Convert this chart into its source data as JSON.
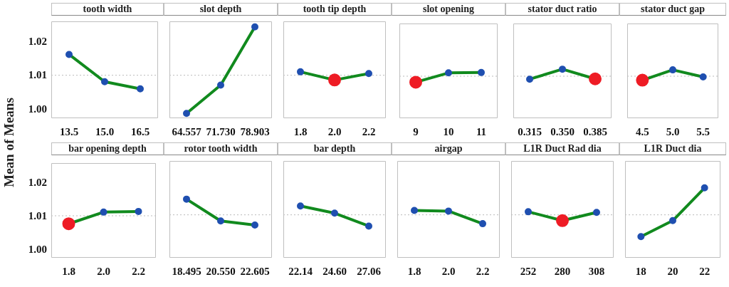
{
  "chart_data": [
    {
      "type": "line",
      "title": "tooth width",
      "ylabel": "Mean of Means",
      "categories": [
        "13.5",
        "15.0",
        "16.5"
      ],
      "series": [
        {
          "color": "#118a1e",
          "colors": [
            "#1f4fb0",
            "#1f4fb0",
            "#1f4fb0"
          ],
          "values": [
            1.0163,
            1.0083,
            1.0062
          ]
        }
      ],
      "ylim": [
        0.9976,
        1.026
      ],
      "yticks": [
        {
          "value": 1.0,
          "label": "1.00"
        },
        {
          "value": 1.01,
          "label": "1.01"
        },
        {
          "value": 1.02,
          "label": "1.02"
        }
      ],
      "marker": "circle",
      "ref_lines": [
        {
          "axis": "y",
          "value": 1.0102,
          "color": "#bbbbbb",
          "line_style": "dotted"
        }
      ]
    },
    {
      "type": "line",
      "title": "slot depth",
      "categories": [
        "64.557",
        "71.730",
        "78.903"
      ],
      "series": [
        {
          "color": "#118a1e",
          "colors": [
            "#1f4fb0",
            "#1f4fb0",
            "#1f4fb0"
          ],
          "values": [
            0.999,
            1.0073,
            1.0244
          ]
        }
      ],
      "ylim": [
        0.9976,
        1.026
      ],
      "tick_labels": "x",
      "marker": "circle",
      "ref_lines": [
        {
          "axis": "y",
          "value": 1.0102,
          "color": "#bbbbbb",
          "line_style": "dotted"
        }
      ]
    },
    {
      "type": "line",
      "title": "tooth tip depth",
      "categories": [
        "1.8",
        "2.0",
        "2.2"
      ],
      "series": [
        {
          "color": "#118a1e",
          "colors": [
            "#1f4fb0",
            "#ee1c25",
            "#1f4fb0"
          ],
          "values": [
            1.0112,
            1.0088,
            1.0107
          ]
        }
      ],
      "ylim": [
        0.9976,
        1.026
      ],
      "tick_labels": "x",
      "marker": "circle",
      "ref_lines": [
        {
          "axis": "y",
          "value": 1.0102,
          "color": "#bbbbbb",
          "line_style": "dotted"
        }
      ]
    },
    {
      "type": "line",
      "title": "slot opening",
      "categories": [
        "9",
        "10",
        "11"
      ],
      "series": [
        {
          "color": "#118a1e",
          "colors": [
            "#ee1c25",
            "#1f4fb0",
            "#1f4fb0"
          ],
          "values": [
            1.0084,
            1.0112,
            1.0113
          ]
        }
      ],
      "ylim": [
        0.9976,
        1.026
      ],
      "tick_labels": "x",
      "marker": "circle",
      "ref_lines": [
        {
          "axis": "y",
          "value": 1.0102,
          "color": "#bbbbbb",
          "line_style": "dotted"
        }
      ]
    },
    {
      "type": "line",
      "title": "stator duct ratio",
      "categories": [
        "0.315",
        "0.350",
        "0.385"
      ],
      "series": [
        {
          "color": "#118a1e",
          "colors": [
            "#1f4fb0",
            "#1f4fb0",
            "#ee1c25"
          ],
          "values": [
            1.0093,
            1.0123,
            1.0094
          ]
        }
      ],
      "ylim": [
        0.9976,
        1.026
      ],
      "tick_labels": "x",
      "marker": "circle",
      "ref_lines": [
        {
          "axis": "y",
          "value": 1.0102,
          "color": "#bbbbbb",
          "line_style": "dotted"
        }
      ]
    },
    {
      "type": "line",
      "title": "stator duct gap",
      "categories": [
        "4.5",
        "5.0",
        "5.5"
      ],
      "series": [
        {
          "color": "#118a1e",
          "colors": [
            "#ee1c25",
            "#1f4fb0",
            "#1f4fb0"
          ],
          "values": [
            1.009,
            1.0121,
            1.01
          ]
        }
      ],
      "ylim": [
        0.9976,
        1.026
      ],
      "tick_labels": "x",
      "marker": "circle",
      "ref_lines": [
        {
          "axis": "y",
          "value": 1.0102,
          "color": "#bbbbbb",
          "line_style": "dotted"
        }
      ]
    },
    {
      "type": "line",
      "title": "bar opening depth",
      "categories": [
        "1.8",
        "2.0",
        "2.2"
      ],
      "series": [
        {
          "color": "#118a1e",
          "colors": [
            "#ee1c25",
            "#1f4fb0",
            "#1f4fb0"
          ],
          "values": [
            1.0078,
            1.0113,
            1.0115
          ]
        }
      ],
      "ylim": [
        0.9976,
        1.026
      ],
      "yticks": [
        {
          "value": 1.0,
          "label": "1.00"
        },
        {
          "value": 1.01,
          "label": "1.01"
        },
        {
          "value": 1.02,
          "label": "1.02"
        }
      ],
      "marker": "circle",
      "ref_lines": [
        {
          "axis": "y",
          "value": 1.0102,
          "color": "#bbbbbb",
          "line_style": "dotted"
        }
      ]
    },
    {
      "type": "line",
      "title": "rotor tooth width",
      "categories": [
        "18.495",
        "20.550",
        "22.605"
      ],
      "series": [
        {
          "color": "#118a1e",
          "colors": [
            "#1f4fb0",
            "#1f4fb0",
            "#1f4fb0"
          ],
          "values": [
            1.0148,
            1.0084,
            1.0072
          ]
        }
      ],
      "ylim": [
        0.9976,
        1.026
      ],
      "tick_labels": "x",
      "marker": "circle",
      "ref_lines": [
        {
          "axis": "y",
          "value": 1.0102,
          "color": "#bbbbbb",
          "line_style": "dotted"
        }
      ]
    },
    {
      "type": "line",
      "title": "bar depth",
      "categories": [
        "22.14",
        "24.60",
        "27.06"
      ],
      "series": [
        {
          "color": "#118a1e",
          "colors": [
            "#1f4fb0",
            "#1f4fb0",
            "#1f4fb0"
          ],
          "values": [
            1.0128,
            1.0107,
            1.0069
          ]
        }
      ],
      "ylim": [
        0.9976,
        1.026
      ],
      "tick_labels": "x",
      "marker": "circle",
      "ref_lines": [
        {
          "axis": "y",
          "value": 1.0102,
          "color": "#bbbbbb",
          "line_style": "dotted"
        }
      ]
    },
    {
      "type": "line",
      "title": "airgap",
      "categories": [
        "1.8",
        "2.0",
        "2.2"
      ],
      "series": [
        {
          "color": "#118a1e",
          "colors": [
            "#1f4fb0",
            "#1f4fb0",
            "#1f4fb0"
          ],
          "values": [
            1.0115,
            1.0113,
            1.0076
          ]
        }
      ],
      "ylim": [
        0.9976,
        1.026
      ],
      "tick_labels": "x",
      "marker": "circle",
      "ref_lines": [
        {
          "axis": "y",
          "value": 1.0102,
          "color": "#bbbbbb",
          "line_style": "dotted"
        }
      ]
    },
    {
      "type": "line",
      "title": "L1R Duct Rad dia",
      "categories": [
        "252",
        "280",
        "308"
      ],
      "series": [
        {
          "color": "#118a1e",
          "colors": [
            "#1f4fb0",
            "#ee1c25",
            "#1f4fb0"
          ],
          "values": [
            1.0111,
            1.0085,
            1.0109
          ]
        }
      ],
      "ylim": [
        0.9976,
        1.026
      ],
      "tick_labels": "x",
      "marker": "circle",
      "ref_lines": [
        {
          "axis": "y",
          "value": 1.0102,
          "color": "#bbbbbb",
          "line_style": "dotted"
        }
      ]
    },
    {
      "type": "line",
      "title": "L1R Duct dia",
      "categories": [
        "18",
        "20",
        "22"
      ],
      "series": [
        {
          "color": "#118a1e",
          "colors": [
            "#1f4fb0",
            "#1f4fb0",
            "#1f4fb0"
          ],
          "values": [
            1.0038,
            1.0085,
            1.0181
          ]
        }
      ],
      "ylim": [
        0.9976,
        1.026
      ],
      "tick_labels": "x",
      "marker": "circle",
      "ref_lines": [
        {
          "axis": "y",
          "value": 1.0102,
          "color": "#bbbbbb",
          "line_style": "dotted"
        }
      ]
    }
  ]
}
